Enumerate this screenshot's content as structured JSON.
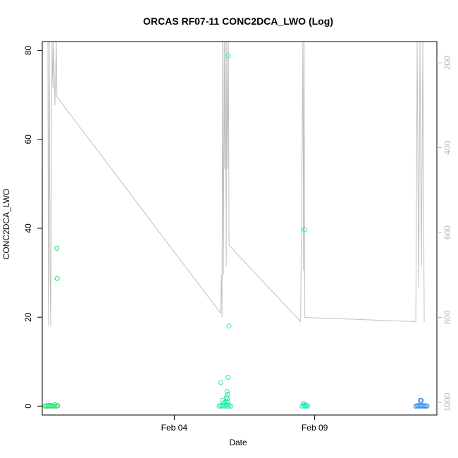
{
  "chart_data": {
    "type": "scatter",
    "title": "ORCAS RF07-11 CONC2DCA_LWO (Log)",
    "xlabel": "Date",
    "ylabel": "CONC2DCA_LWO",
    "x_range": [
      -4.7,
      9.35
    ],
    "x_units": "days relative to Feb 04",
    "xticks": [
      {
        "value": 0,
        "label": "Feb 04"
      },
      {
        "value": 5,
        "label": "Feb 09"
      }
    ],
    "ylim": [
      -2,
      82
    ],
    "yticks": [
      0,
      20,
      40,
      60,
      80
    ],
    "y2_range": [
      1030,
      150
    ],
    "y2ticks": [
      200,
      400,
      600,
      800,
      1000
    ],
    "colors": {
      "axis": "#000000",
      "secondary_axis": "#b8b8b8",
      "trace": "#c0c0c0",
      "points_rf07": "#22dd66",
      "points_rf08": "#22e8a0",
      "points_rf09": "#22e8c8",
      "points_rf11": "#2b88ee"
    },
    "series": [
      {
        "key": "rf07",
        "color": "#22dd66",
        "points": [
          {
            "x": -4.6,
            "y": 0
          },
          {
            "x": -4.55,
            "y": 0.1
          },
          {
            "x": -4.5,
            "y": 0
          },
          {
            "x": -4.45,
            "y": 0.2
          },
          {
            "x": -4.4,
            "y": 0
          },
          {
            "x": -4.35,
            "y": 0.1
          },
          {
            "x": -4.3,
            "y": 0
          },
          {
            "x": -4.25,
            "y": 0.3
          },
          {
            "x": -4.2,
            "y": 0
          },
          {
            "x": -4.15,
            "y": 0.1
          },
          {
            "x": -4.18,
            "y": 35.5
          },
          {
            "x": -4.17,
            "y": 28.7
          }
        ]
      },
      {
        "key": "rf08",
        "color": "#22e8a0",
        "points": [
          {
            "x": 1.6,
            "y": 0
          },
          {
            "x": 1.65,
            "y": 0.2
          },
          {
            "x": 1.7,
            "y": 0
          },
          {
            "x": 1.75,
            "y": 0.1
          },
          {
            "x": 1.8,
            "y": 0
          },
          {
            "x": 1.85,
            "y": 0.3
          },
          {
            "x": 1.9,
            "y": 0
          },
          {
            "x": 1.95,
            "y": 0.2
          },
          {
            "x": 2.0,
            "y": 0
          },
          {
            "x": 1.72,
            "y": 1.3
          },
          {
            "x": 1.78,
            "y": 0.8
          },
          {
            "x": 1.66,
            "y": 5.3
          },
          {
            "x": 1.92,
            "y": 6.5
          },
          {
            "x": 1.88,
            "y": 3.3
          },
          {
            "x": 1.9,
            "y": 2.6
          },
          {
            "x": 1.86,
            "y": 2.0
          },
          {
            "x": 1.89,
            "y": 1.6
          },
          {
            "x": 1.84,
            "y": 1.1
          },
          {
            "x": 1.91,
            "y": 0.9
          }
        ]
      },
      {
        "key": "rf08_high",
        "color": "#22e8c8",
        "points": [
          {
            "x": 1.93,
            "y": 78.8
          },
          {
            "x": 1.95,
            "y": 18.0
          }
        ]
      },
      {
        "key": "rf09",
        "color": "#22e8c8",
        "points": [
          {
            "x": 4.55,
            "y": 0
          },
          {
            "x": 4.6,
            "y": 0.2
          },
          {
            "x": 4.65,
            "y": 0
          },
          {
            "x": 4.7,
            "y": 0.1
          },
          {
            "x": 4.75,
            "y": 0
          },
          {
            "x": 4.6,
            "y": 0.6
          },
          {
            "x": 4.68,
            "y": 0.3
          },
          {
            "x": 4.64,
            "y": 39.7
          }
        ]
      },
      {
        "key": "rf11",
        "color": "#2b88ee",
        "points": [
          {
            "x": 8.6,
            "y": 0
          },
          {
            "x": 8.65,
            "y": 0.1
          },
          {
            "x": 8.7,
            "y": 0
          },
          {
            "x": 8.75,
            "y": 0.2
          },
          {
            "x": 8.8,
            "y": 0
          },
          {
            "x": 8.85,
            "y": 0.1
          },
          {
            "x": 8.9,
            "y": 0
          },
          {
            "x": 8.95,
            "y": 0.1
          },
          {
            "x": 9.0,
            "y": 0
          },
          {
            "x": 8.76,
            "y": 1.3
          },
          {
            "x": 8.8,
            "y": 1.2
          }
        ]
      }
    ],
    "secondary_trace": {
      "color": "#c0c0c0",
      "axis": "right",
      "points": [
        {
          "x": -4.5,
          "y": 150
        },
        {
          "x": -4.48,
          "y": 820
        },
        {
          "x": -4.45,
          "y": 150
        },
        {
          "x": -4.42,
          "y": 700
        },
        {
          "x": -4.4,
          "y": 820
        },
        {
          "x": -4.38,
          "y": 500
        },
        {
          "x": -4.35,
          "y": 150
        },
        {
          "x": -4.32,
          "y": 260
        },
        {
          "x": -4.3,
          "y": 150
        },
        {
          "x": -4.25,
          "y": 300
        },
        {
          "x": -4.2,
          "y": 150
        },
        {
          "x": -4.18,
          "y": 280
        },
        {
          "x": 1.65,
          "y": 790
        },
        {
          "x": 1.68,
          "y": 700
        },
        {
          "x": 1.7,
          "y": 800
        },
        {
          "x": 1.72,
          "y": 150
        },
        {
          "x": 1.75,
          "y": 700
        },
        {
          "x": 1.78,
          "y": 150
        },
        {
          "x": 1.8,
          "y": 450
        },
        {
          "x": 1.82,
          "y": 150
        },
        {
          "x": 1.85,
          "y": 680
        },
        {
          "x": 1.87,
          "y": 150
        },
        {
          "x": 1.9,
          "y": 450
        },
        {
          "x": 1.93,
          "y": 150
        },
        {
          "x": 1.95,
          "y": 630
        },
        {
          "x": 4.5,
          "y": 810
        },
        {
          "x": 4.58,
          "y": 150
        },
        {
          "x": 4.6,
          "y": 690
        },
        {
          "x": 4.62,
          "y": 150
        },
        {
          "x": 4.65,
          "y": 800
        },
        {
          "x": 8.6,
          "y": 810
        },
        {
          "x": 8.65,
          "y": 150
        },
        {
          "x": 8.7,
          "y": 730
        },
        {
          "x": 8.75,
          "y": 150
        },
        {
          "x": 8.8,
          "y": 680
        },
        {
          "x": 8.85,
          "y": 150
        },
        {
          "x": 8.9,
          "y": 810
        }
      ]
    }
  }
}
